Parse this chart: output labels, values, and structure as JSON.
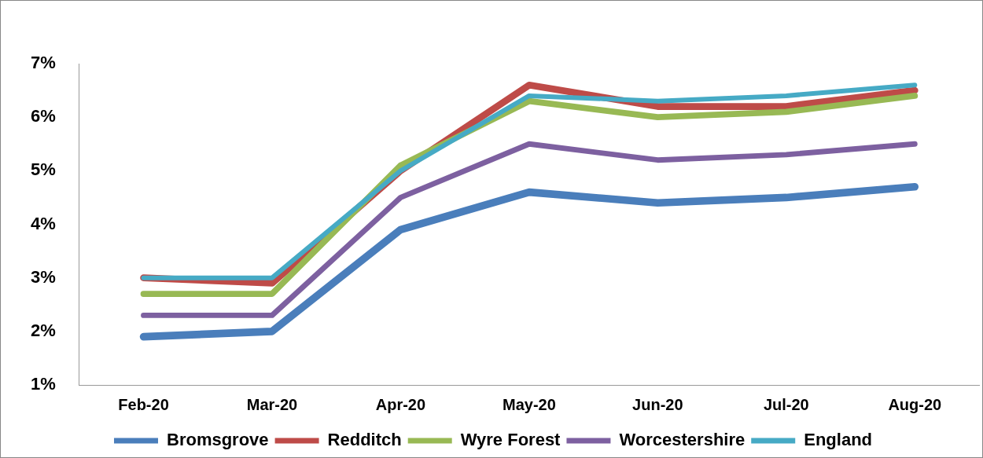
{
  "chart_data": {
    "type": "line",
    "categories": [
      "Feb-20",
      "Mar-20",
      "Apr-20",
      "May-20",
      "Jun-20",
      "Jul-20",
      "Aug-20"
    ],
    "series": [
      {
        "name": "Bromsgrove",
        "color": "#4a7ebb",
        "values": [
          1.9,
          2.0,
          3.9,
          4.6,
          4.4,
          4.5,
          4.7
        ]
      },
      {
        "name": "Redditch",
        "color": "#be4b48",
        "values": [
          3.0,
          2.9,
          5.0,
          6.6,
          6.2,
          6.2,
          6.5
        ]
      },
      {
        "name": "Wyre Forest",
        "color": "#98b954",
        "values": [
          2.7,
          2.7,
          5.1,
          6.3,
          6.0,
          6.1,
          6.4
        ]
      },
      {
        "name": "Worcestershire",
        "color": "#7d60a0",
        "values": [
          2.3,
          2.3,
          4.5,
          5.5,
          5.2,
          5.3,
          5.5
        ]
      },
      {
        "name": "England",
        "color": "#46aac5",
        "values": [
          3.0,
          3.0,
          5.0,
          6.4,
          6.3,
          6.4,
          6.6
        ]
      }
    ],
    "ylim": [
      1,
      7
    ],
    "yticks": [
      {
        "value": 1,
        "label": "1%"
      },
      {
        "value": 2,
        "label": "2%"
      },
      {
        "value": 3,
        "label": "3%"
      },
      {
        "value": 4,
        "label": "4%"
      },
      {
        "value": 5,
        "label": "5%"
      },
      {
        "value": 6,
        "label": "6%"
      },
      {
        "value": 7,
        "label": "7%"
      }
    ],
    "grid": false,
    "legend": "bottom",
    "marker": "none",
    "line_style": "solid"
  }
}
